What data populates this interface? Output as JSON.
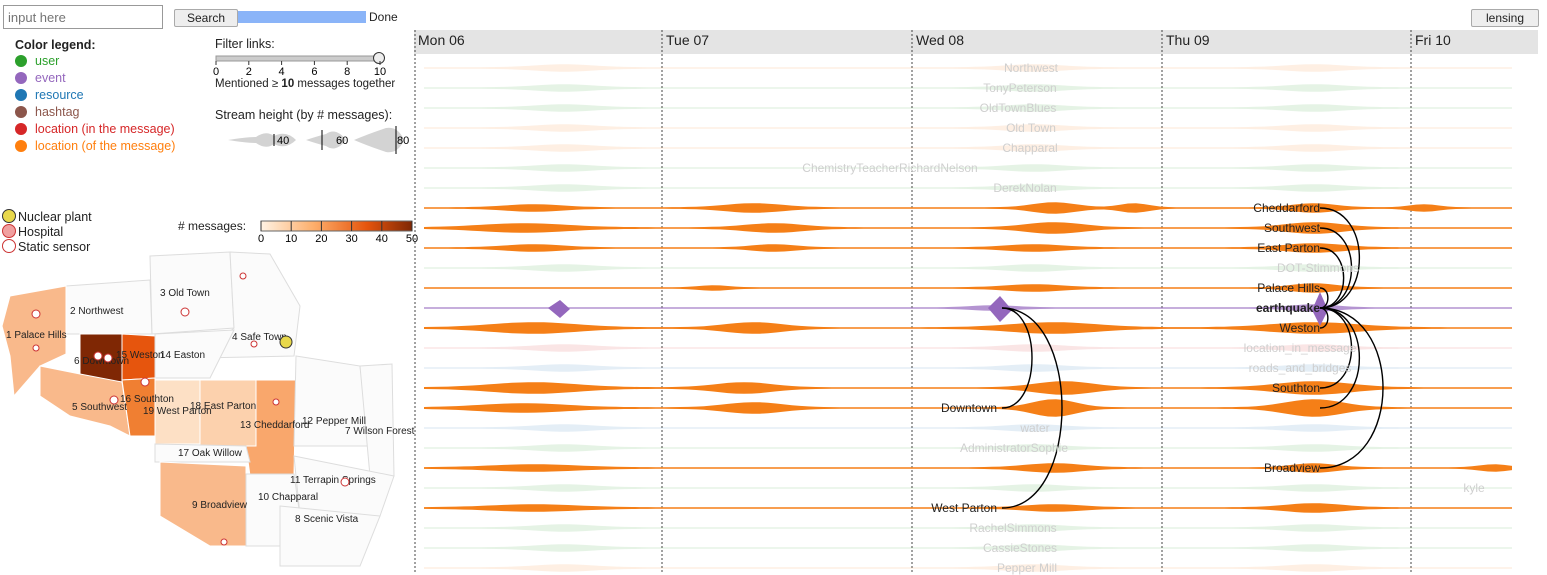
{
  "search": {
    "placeholder": "input here",
    "button": "Search",
    "status": "Done"
  },
  "lensing_button": "lensing",
  "color_legend": {
    "title": "Color legend:",
    "items": [
      {
        "label": "user",
        "color": "#2ca02c"
      },
      {
        "label": "event",
        "color": "#9467bd"
      },
      {
        "label": "resource",
        "color": "#1f77b4"
      },
      {
        "label": "hashtag",
        "color": "#8c564b"
      },
      {
        "label": "location (in the message)",
        "color": "#d62728"
      },
      {
        "label": "location (of the message)",
        "color": "#ff7f0e"
      }
    ]
  },
  "filter": {
    "title": "Filter links:",
    "ticks": [
      "0",
      "2",
      "4",
      "6",
      "8",
      "10"
    ],
    "value": 10,
    "note_prefix": "Mentioned ≥",
    "note_value": "10",
    "note_suffix": "messages together"
  },
  "stream_height": {
    "title": "Stream height (by # messages):",
    "samples": [
      "40",
      "60",
      "80"
    ]
  },
  "poi_legend": [
    {
      "label": "Nuclear plant",
      "icon": "radiation-icon"
    },
    {
      "label": "Hospital",
      "icon": "hospital-icon"
    },
    {
      "label": "Static sensor",
      "icon": "sensor-icon"
    }
  ],
  "messages_scale": {
    "title": "# messages:",
    "ticks": [
      "0",
      "10",
      "20",
      "30",
      "40",
      "50"
    ]
  },
  "map_labels": [
    "1 Palace Hills",
    "2 Northwest",
    "3 Old Town",
    "4 Safe Town",
    "5 Southwest",
    "6 Downtown",
    "7 Wilson Forest",
    "8 Scenic Vista",
    "9 Broadview",
    "10 Chapparal",
    "11 Terrapin Springs",
    "12 Pepper Mill",
    "13 Cheddarford",
    "14 Easton",
    "15 Weston",
    "16 Southton",
    "17 Oak Willow",
    "18 East Parton",
    "19 West Parton"
  ],
  "days": [
    "Mon 06",
    "Tue 07",
    "Wed 08",
    "Thu 09",
    "Fri 10"
  ],
  "faint_labels": [
    "Northwest",
    "TonyPeterson",
    "OldTownBlues",
    "Old Town",
    "Chapparal",
    "ChemistryTeacherRichardNelson",
    "DerekNolan",
    "DOT-Stimmons",
    "location_in_message",
    "roads_and_bridges",
    "water",
    "AdministratorSophie",
    "kyle",
    "RachelSimmons",
    "CassieStones",
    "Pepper Mill"
  ],
  "left_labels": [
    "Downtown",
    "West Parton"
  ],
  "right_labels": [
    "Cheddarford",
    "Southwest",
    "East Parton",
    "Palace Hills",
    "earthquake",
    "Weston",
    "Southton",
    "Broadview"
  ],
  "colors": {
    "location": "#f57f17",
    "event": "#9467bd",
    "header": "#e4e4e4"
  }
}
